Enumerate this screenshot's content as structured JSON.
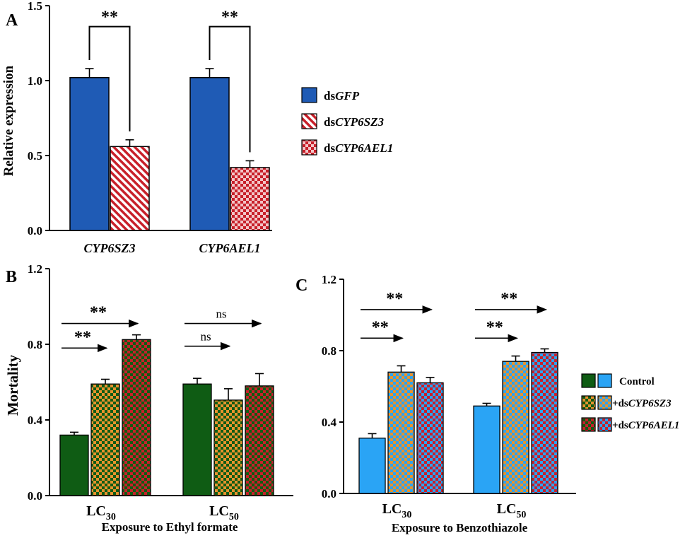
{
  "chart_data": [
    {
      "panel": "A",
      "type": "bar",
      "ylabel": "Relative expression",
      "xlabel": "",
      "ylim": [
        0,
        1.5
      ],
      "yticks": [
        "0.0",
        "0.5",
        "1.0",
        "1.5"
      ],
      "categories": [
        "CYP6SZ3",
        "CYP6AEL1"
      ],
      "series": [
        {
          "name": "GFP",
          "legend_prefix": "ds",
          "legend_name": "GFP",
          "color": "#1f5bb5",
          "pattern": "solid",
          "values": [
            1.02,
            null
          ],
          "errors": [
            0.06,
            null
          ]
        },
        {
          "name": "CYP6SZ3",
          "legend_prefix": "ds",
          "legend_name": "CYP6SZ3",
          "color": "#c8202a",
          "pattern": "hatch",
          "values": [
            0.56,
            null
          ],
          "errors": [
            0.045,
            null
          ]
        },
        {
          "name": "CYP6AEL1",
          "legend_prefix": "ds",
          "legend_name": "CYP6AEL1",
          "color": "#c8202a",
          "pattern": "checker-light",
          "values": [
            null,
            0.42
          ],
          "errors": [
            null,
            0.045
          ]
        }
      ],
      "bars": [
        {
          "category": "CYP6SZ3",
          "series": "GFP",
          "value": 1.02,
          "error": 0.06
        },
        {
          "category": "CYP6SZ3",
          "series": "CYP6SZ3",
          "value": 0.56,
          "error": 0.045
        },
        {
          "category": "CYP6AEL1",
          "series": "GFP",
          "value": 1.02,
          "error": 0.06
        },
        {
          "category": "CYP6AEL1",
          "series": "CYP6AEL1",
          "value": 0.42,
          "error": 0.045
        }
      ],
      "annotations": [
        {
          "text": "**",
          "from_bar": 0,
          "to_bar": 1,
          "level": 1.36
        },
        {
          "text": "**",
          "from_bar": 2,
          "to_bar": 3,
          "level": 1.36
        }
      ]
    },
    {
      "panel": "B",
      "type": "bar",
      "ylabel": "Mortality",
      "xlabel": "Exposure to Ethyl formate",
      "ylim": [
        0,
        1.2
      ],
      "yticks": [
        "0.0",
        "0.4",
        "0.8",
        "1.2"
      ],
      "categories": [
        {
          "base": "LC",
          "sub": "30"
        },
        {
          "base": "LC",
          "sub": "50"
        }
      ],
      "series": [
        {
          "name": "Control",
          "color": "#0f5c14",
          "pattern": "solid",
          "values": [
            0.32,
            0.59
          ],
          "errors": [
            0.015,
            0.03
          ]
        },
        {
          "name": "+dsCYP6SZ3",
          "color": "#0f5c14",
          "pattern": "checker-orange",
          "values": [
            0.59,
            0.505
          ],
          "errors": [
            0.025,
            0.06
          ]
        },
        {
          "name": "+dsCYP6AEL1",
          "color": "#0f5c14",
          "pattern": "checker-red",
          "values": [
            0.825,
            0.58
          ],
          "errors": [
            0.025,
            0.065
          ]
        }
      ],
      "annotations": [
        {
          "text": "**",
          "category": 0,
          "from_series": 0,
          "to_series": 2,
          "level": 0.91
        },
        {
          "text": "**",
          "category": 0,
          "from_series": 0,
          "to_series": 1,
          "level": 0.78
        },
        {
          "text": "ns",
          "category": 1,
          "from_series": 0,
          "to_series": 2,
          "level": 0.91
        },
        {
          "text": "ns",
          "category": 1,
          "from_series": 0,
          "to_series": 1,
          "level": 0.79
        }
      ]
    },
    {
      "panel": "C",
      "type": "bar",
      "ylabel": "",
      "xlabel": "Exposure to Benzothiazole",
      "ylim": [
        0,
        1.2
      ],
      "yticks": [
        "0.0",
        "0.4",
        "0.8",
        "1.2"
      ],
      "categories": [
        {
          "base": "LC",
          "sub": "30"
        },
        {
          "base": "LC",
          "sub": "50"
        }
      ],
      "series": [
        {
          "name": "Control",
          "color": "#2aa4f5",
          "pattern": "solid",
          "values": [
            0.31,
            0.49
          ],
          "errors": [
            0.025,
            0.015
          ]
        },
        {
          "name": "+dsCYP6SZ3",
          "color": "#2aa4f5",
          "pattern": "checker-orange",
          "values": [
            0.68,
            0.74
          ],
          "errors": [
            0.035,
            0.03
          ]
        },
        {
          "name": "+dsCYP6AEL1",
          "color": "#2aa4f5",
          "pattern": "checker-red",
          "values": [
            0.62,
            0.79
          ],
          "errors": [
            0.03,
            0.02
          ]
        }
      ],
      "annotations": [
        {
          "text": "**",
          "category": 0,
          "from_series": 0,
          "to_series": 2,
          "level": 1.03
        },
        {
          "text": "**",
          "category": 0,
          "from_series": 0,
          "to_series": 1,
          "level": 0.87
        },
        {
          "text": "**",
          "category": 1,
          "from_series": 0,
          "to_series": 2,
          "level": 1.03
        },
        {
          "text": "**",
          "category": 1,
          "from_series": 0,
          "to_series": 1,
          "level": 0.87
        }
      ]
    }
  ],
  "legend_bc": [
    {
      "prefix": "",
      "label": "Control",
      "italic": false
    },
    {
      "prefix": "+ds",
      "label": "CYP6SZ3",
      "italic": true
    },
    {
      "prefix": "+ds",
      "label": "CYP6AEL1",
      "italic": true
    }
  ],
  "colors": {
    "blue": "#1f5bb5",
    "red": "#c8202a",
    "green": "#0f5c14",
    "lightblue": "#2aa4f5",
    "orange": "#e8922e",
    "checker_red": "#c8202a"
  }
}
